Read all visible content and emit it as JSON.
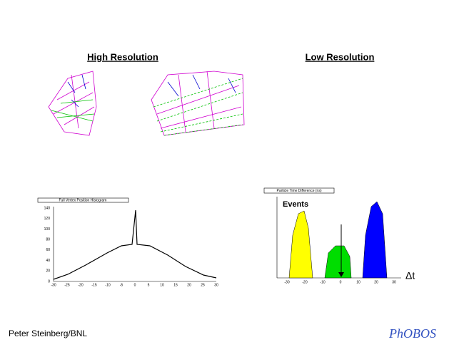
{
  "slide": {
    "left_heading": "High Resolution",
    "right_heading": "Low Resolution",
    "footer": "Peter Steinberg/BNL",
    "logo": "PhOBOS"
  },
  "left_plot": {
    "title": "Full Vertex Position Histogram",
    "yticks": [
      "0",
      "20",
      "40",
      "60",
      "80",
      "100",
      "120",
      "140"
    ],
    "xticks": [
      "-30",
      "-25",
      "-20",
      "-15",
      "-10",
      "-5",
      "0",
      "5",
      "10",
      "15",
      "20",
      "25",
      "30"
    ]
  },
  "right_plot": {
    "title": "Particle Time Difference (ns)",
    "y_label": "Events",
    "x_annotation": "Δt",
    "xticks": [
      "-30",
      "-20",
      "-10",
      "0",
      "10",
      "20",
      "30"
    ]
  }
}
